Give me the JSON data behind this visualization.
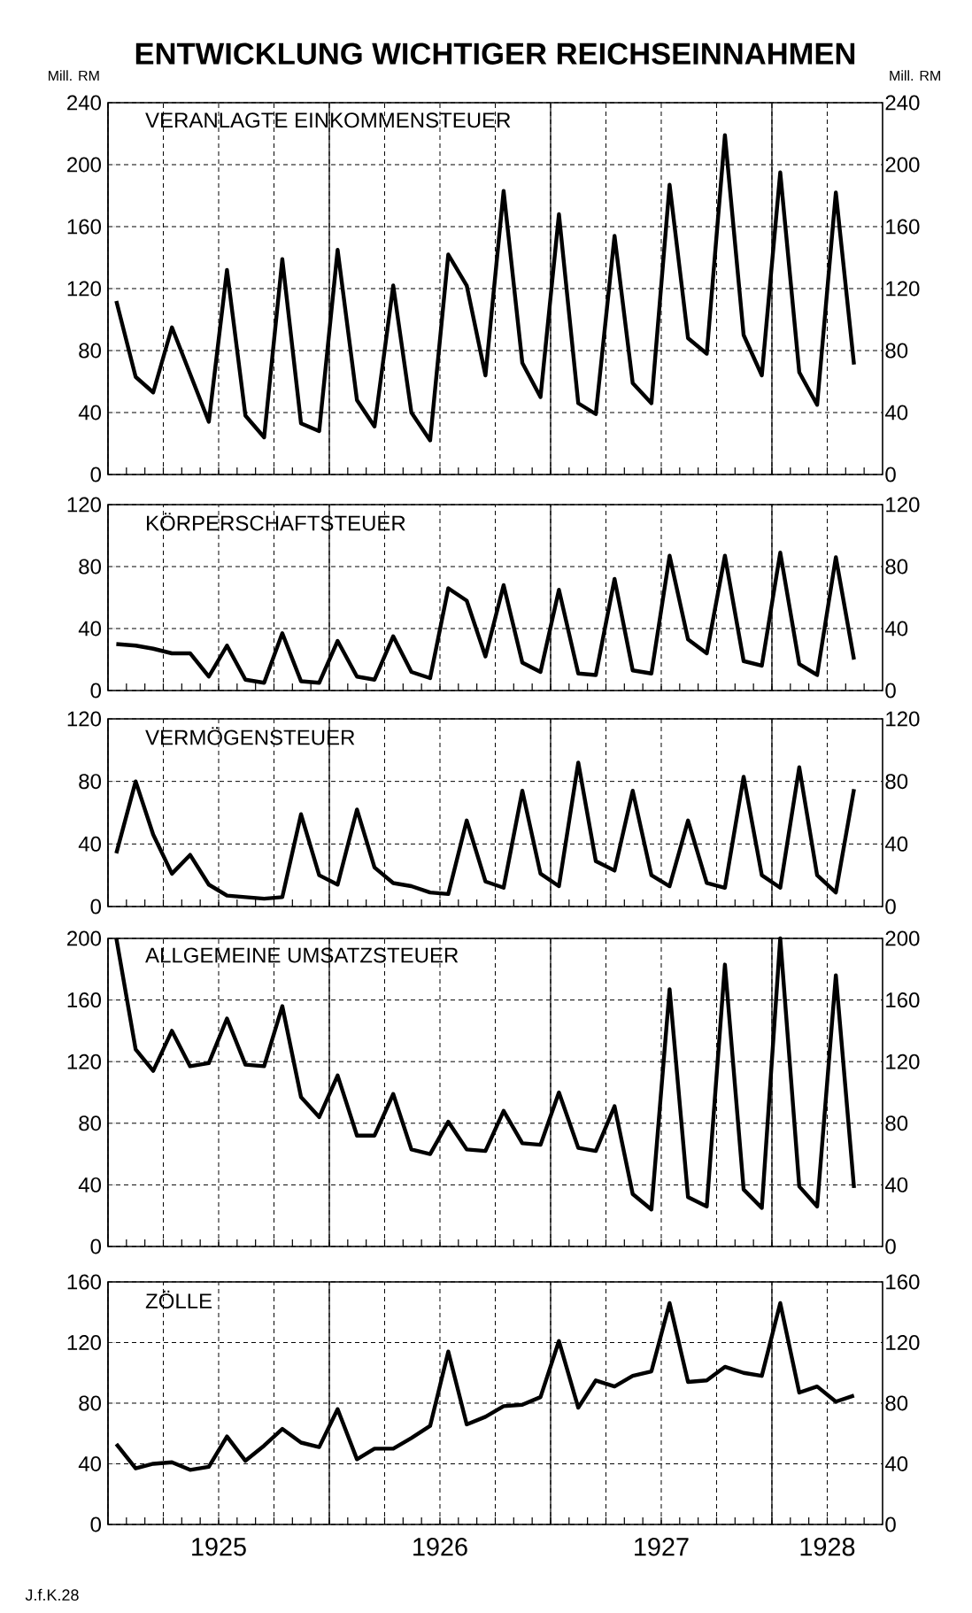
{
  "chart_data": [
    {
      "type": "line",
      "title": "ENTWICKLUNG WICHTIGER REICHSEINNAHMEN",
      "subtitle": "VERANLAGTE EINKOMMENSTEUER",
      "ylabel": "Mill. RM",
      "y2label": "Mill. RM",
      "x": [
        "1925-01-15",
        "1925-02-15",
        "1925-03-15",
        "1925-04-15",
        "1925-05-15",
        "1925-06-15",
        "1925-07-15",
        "1925-08-15",
        "1925-09-15",
        "1925-10-15",
        "1925-11-15",
        "1925-12-15",
        "1926-01-15",
        "1926-02-15",
        "1926-03-15",
        "1926-04-15",
        "1926-05-15",
        "1926-06-15",
        "1926-07-15",
        "1926-08-15",
        "1926-09-15",
        "1926-10-15",
        "1926-11-15",
        "1926-12-15",
        "1927-01-15",
        "1927-02-15",
        "1927-03-15",
        "1927-04-15",
        "1927-05-15",
        "1927-06-15",
        "1927-07-15",
        "1927-08-15",
        "1927-09-15",
        "1927-10-15",
        "1927-11-15",
        "1927-12-15",
        "1928-01-15",
        "1928-02-15",
        "1928-03-15",
        "1928-04-15",
        "1928-05-15"
      ],
      "series": [
        {
          "color": "#000000",
          "values": [
            112,
            63,
            53,
            95,
            65,
            34,
            132,
            38,
            24,
            139,
            33,
            28,
            145,
            48,
            31,
            122,
            40,
            22,
            142,
            122,
            64,
            183,
            72,
            50,
            168,
            46,
            39,
            154,
            59,
            46,
            187,
            88,
            78,
            219,
            90,
            64,
            195,
            66,
            45,
            182,
            71
          ]
        }
      ],
      "xlim": [
        "1925-01-01",
        "1928-07-01"
      ],
      "xticks": [
        {
          "value": "1925-01-01",
          "label": null
        },
        {
          "value": "1925-04-01",
          "label": null
        },
        {
          "value": "1925-07-01",
          "label": null
        },
        {
          "value": "1925-10-01",
          "label": null
        },
        {
          "value": "1926-01-01",
          "label": null
        },
        {
          "value": "1926-04-01",
          "label": null
        },
        {
          "value": "1926-07-01",
          "label": null
        },
        {
          "value": "1926-10-01",
          "label": null
        },
        {
          "value": "1927-01-01",
          "label": null
        },
        {
          "value": "1927-04-01",
          "label": null
        },
        {
          "value": "1927-07-01",
          "label": null
        },
        {
          "value": "1927-10-01",
          "label": null
        },
        {
          "value": "1928-01-01",
          "label": null
        },
        {
          "value": "1928-04-01",
          "label": null
        }
      ],
      "ylim": [
        0,
        240
      ],
      "yticks": [
        0,
        40,
        80,
        120,
        160,
        200,
        240
      ],
      "y2lim": [
        0,
        240
      ],
      "y2ticks": [
        0,
        40,
        80,
        120,
        160,
        200,
        240
      ],
      "grid": true,
      "tick_labels": "y"
    },
    {
      "type": "line",
      "title": "KÖRPERSCHAFTSTEUER",
      "x": [
        "1925-01-15",
        "1925-02-15",
        "1925-03-15",
        "1925-04-15",
        "1925-05-15",
        "1925-06-15",
        "1925-07-15",
        "1925-08-15",
        "1925-09-15",
        "1925-10-15",
        "1925-11-15",
        "1925-12-15",
        "1926-01-15",
        "1926-02-15",
        "1926-03-15",
        "1926-04-15",
        "1926-05-15",
        "1926-06-15",
        "1926-07-15",
        "1926-08-15",
        "1926-09-15",
        "1926-10-15",
        "1926-11-15",
        "1926-12-15",
        "1927-01-15",
        "1927-02-15",
        "1927-03-15",
        "1927-04-15",
        "1927-05-15",
        "1927-06-15",
        "1927-07-15",
        "1927-08-15",
        "1927-09-15",
        "1927-10-15",
        "1927-11-15",
        "1927-12-15",
        "1928-01-15",
        "1928-02-15",
        "1928-03-15",
        "1928-04-15",
        "1928-05-15"
      ],
      "series": [
        {
          "color": "#000000",
          "values": [
            30,
            29,
            27,
            24,
            24,
            9,
            29,
            7,
            5,
            37,
            6,
            5,
            32,
            9,
            7,
            35,
            12,
            8,
            66,
            58,
            22,
            68,
            18,
            12,
            65,
            11,
            10,
            72,
            13,
            11,
            87,
            33,
            24,
            87,
            19,
            16,
            89,
            17,
            10,
            86,
            20
          ]
        }
      ],
      "xlim": [
        "1925-01-01",
        "1928-07-01"
      ],
      "xticks": [
        {
          "value": "1925-01-01",
          "label": null
        },
        {
          "value": "1925-04-01",
          "label": null
        },
        {
          "value": "1925-07-01",
          "label": null
        },
        {
          "value": "1925-10-01",
          "label": null
        },
        {
          "value": "1926-01-01",
          "label": null
        },
        {
          "value": "1926-04-01",
          "label": null
        },
        {
          "value": "1926-07-01",
          "label": null
        },
        {
          "value": "1926-10-01",
          "label": null
        },
        {
          "value": "1927-01-01",
          "label": null
        },
        {
          "value": "1927-04-01",
          "label": null
        },
        {
          "value": "1927-07-01",
          "label": null
        },
        {
          "value": "1927-10-01",
          "label": null
        },
        {
          "value": "1928-01-01",
          "label": null
        },
        {
          "value": "1928-04-01",
          "label": null
        }
      ],
      "ylim": [
        0,
        120
      ],
      "yticks": [
        0,
        40,
        80,
        120
      ],
      "y2lim": [
        0,
        120
      ],
      "y2ticks": [
        0,
        40,
        80,
        120
      ],
      "grid": true,
      "tick_labels": "y"
    },
    {
      "type": "line",
      "title": "VERMÖGENSTEUER",
      "x": [
        "1925-01-15",
        "1925-02-15",
        "1925-03-15",
        "1925-04-15",
        "1925-05-15",
        "1925-06-15",
        "1925-07-15",
        "1925-08-15",
        "1925-09-15",
        "1925-10-15",
        "1925-11-15",
        "1925-12-15",
        "1926-01-15",
        "1926-02-15",
        "1926-03-15",
        "1926-04-15",
        "1926-05-15",
        "1926-06-15",
        "1926-07-15",
        "1926-08-15",
        "1926-09-15",
        "1926-10-15",
        "1926-11-15",
        "1926-12-15",
        "1927-01-15",
        "1927-02-15",
        "1927-03-15",
        "1927-04-15",
        "1927-05-15",
        "1927-06-15",
        "1927-07-15",
        "1927-08-15",
        "1927-09-15",
        "1927-10-15",
        "1927-11-15",
        "1927-12-15",
        "1928-01-15",
        "1928-02-15",
        "1928-03-15",
        "1928-04-15",
        "1928-05-15"
      ],
      "series": [
        {
          "color": "#000000",
          "values": [
            34,
            80,
            46,
            21,
            33,
            14,
            7,
            6,
            5,
            6,
            59,
            20,
            14,
            62,
            25,
            15,
            13,
            9,
            8,
            55,
            16,
            12,
            74,
            21,
            13,
            92,
            29,
            23,
            74,
            20,
            13,
            55,
            15,
            12,
            83,
            20,
            12,
            89,
            20,
            9,
            75
          ]
        }
      ],
      "xlim": [
        "1925-01-01",
        "1928-07-01"
      ],
      "xticks": [
        {
          "value": "1925-01-01",
          "label": null
        },
        {
          "value": "1925-04-01",
          "label": null
        },
        {
          "value": "1925-07-01",
          "label": null
        },
        {
          "value": "1925-10-01",
          "label": null
        },
        {
          "value": "1926-01-01",
          "label": null
        },
        {
          "value": "1926-04-01",
          "label": null
        },
        {
          "value": "1926-07-01",
          "label": null
        },
        {
          "value": "1926-10-01",
          "label": null
        },
        {
          "value": "1927-01-01",
          "label": null
        },
        {
          "value": "1927-04-01",
          "label": null
        },
        {
          "value": "1927-07-01",
          "label": null
        },
        {
          "value": "1927-10-01",
          "label": null
        },
        {
          "value": "1928-01-01",
          "label": null
        },
        {
          "value": "1928-04-01",
          "label": null
        }
      ],
      "ylim": [
        0,
        120
      ],
      "yticks": [
        0,
        40,
        80,
        120
      ],
      "y2lim": [
        0,
        120
      ],
      "y2ticks": [
        0,
        40,
        80,
        120
      ],
      "grid": true,
      "tick_labels": "y"
    },
    {
      "type": "line",
      "title": "ALLGEMEINE UMSATZSTEUER",
      "x": [
        "1925-01-15",
        "1925-02-15",
        "1925-03-15",
        "1925-04-15",
        "1925-05-15",
        "1925-06-15",
        "1925-07-15",
        "1925-08-15",
        "1925-09-15",
        "1925-10-15",
        "1925-11-15",
        "1925-12-15",
        "1926-01-15",
        "1926-02-15",
        "1926-03-15",
        "1926-04-15",
        "1926-05-15",
        "1926-06-15",
        "1926-07-15",
        "1926-08-15",
        "1926-09-15",
        "1926-10-15",
        "1926-11-15",
        "1926-12-15",
        "1927-01-15",
        "1927-02-15",
        "1927-03-15",
        "1927-04-15",
        "1927-05-15",
        "1927-06-15",
        "1927-07-15",
        "1927-08-15",
        "1927-09-15",
        "1927-10-15",
        "1927-11-15",
        "1927-12-15",
        "1928-01-15",
        "1928-02-15",
        "1928-03-15",
        "1928-04-15",
        "1928-05-15"
      ],
      "series": [
        {
          "color": "#000000",
          "values": [
            200,
            128,
            114,
            140,
            117,
            119,
            148,
            118,
            117,
            156,
            97,
            84,
            111,
            72,
            72,
            99,
            63,
            60,
            81,
            63,
            62,
            88,
            67,
            66,
            100,
            64,
            62,
            91,
            34,
            24,
            167,
            32,
            26,
            183,
            37,
            25,
            200,
            39,
            26,
            176,
            38
          ]
        }
      ],
      "xlim": [
        "1925-01-01",
        "1928-07-01"
      ],
      "xticks": [
        {
          "value": "1925-01-01",
          "label": null
        },
        {
          "value": "1925-04-01",
          "label": null
        },
        {
          "value": "1925-07-01",
          "label": null
        },
        {
          "value": "1925-10-01",
          "label": null
        },
        {
          "value": "1926-01-01",
          "label": null
        },
        {
          "value": "1926-04-01",
          "label": null
        },
        {
          "value": "1926-07-01",
          "label": null
        },
        {
          "value": "1926-10-01",
          "label": null
        },
        {
          "value": "1927-01-01",
          "label": null
        },
        {
          "value": "1927-04-01",
          "label": null
        },
        {
          "value": "1927-07-01",
          "label": null
        },
        {
          "value": "1927-10-01",
          "label": null
        },
        {
          "value": "1928-01-01",
          "label": null
        },
        {
          "value": "1928-04-01",
          "label": null
        }
      ],
      "ylim": [
        0,
        200
      ],
      "yticks": [
        0,
        40,
        80,
        120,
        160,
        200
      ],
      "y2lim": [
        0,
        200
      ],
      "y2ticks": [
        0,
        40,
        80,
        120,
        160,
        200
      ],
      "grid": true,
      "tick_labels": "y"
    },
    {
      "type": "line",
      "title": "ZÖLLE",
      "annotations": [
        "J.f.K.28"
      ],
      "x": [
        "1925-01-15",
        "1925-02-15",
        "1925-03-15",
        "1925-04-15",
        "1925-05-15",
        "1925-06-15",
        "1925-07-15",
        "1925-08-15",
        "1925-09-15",
        "1925-10-15",
        "1925-11-15",
        "1925-12-15",
        "1926-01-15",
        "1926-02-15",
        "1926-03-15",
        "1926-04-15",
        "1926-05-15",
        "1926-06-15",
        "1926-07-15",
        "1926-08-15",
        "1926-09-15",
        "1926-10-15",
        "1926-11-15",
        "1926-12-15",
        "1927-01-15",
        "1927-02-15",
        "1927-03-15",
        "1927-04-15",
        "1927-05-15",
        "1927-06-15",
        "1927-07-15",
        "1927-08-15",
        "1927-09-15",
        "1927-10-15",
        "1927-11-15",
        "1927-12-15",
        "1928-01-15",
        "1928-02-15",
        "1928-03-15",
        "1928-04-15",
        "1928-05-15"
      ],
      "series": [
        {
          "color": "#000000",
          "values": [
            53,
            37,
            40,
            41,
            36,
            38,
            58,
            42,
            52,
            63,
            54,
            51,
            76,
            43,
            50,
            50,
            57,
            65,
            114,
            66,
            71,
            78,
            79,
            84,
            121,
            77,
            95,
            91,
            98,
            101,
            146,
            94,
            95,
            104,
            100,
            98,
            146,
            87,
            91,
            81,
            85
          ]
        }
      ],
      "xlim": [
        "1925-01-01",
        "1928-07-01"
      ],
      "xticks": [
        {
          "value": "1925-01-01",
          "label": null
        },
        {
          "value": "1925-04-01",
          "label": null
        },
        {
          "value": "1925-07-01",
          "label": "1925"
        },
        {
          "value": "1925-10-01",
          "label": null
        },
        {
          "value": "1926-01-01",
          "label": null
        },
        {
          "value": "1926-04-01",
          "label": null
        },
        {
          "value": "1926-07-01",
          "label": "1926"
        },
        {
          "value": "1926-10-01",
          "label": null
        },
        {
          "value": "1927-01-01",
          "label": null
        },
        {
          "value": "1927-04-01",
          "label": null
        },
        {
          "value": "1927-07-01",
          "label": "1927"
        },
        {
          "value": "1927-10-01",
          "label": null
        },
        {
          "value": "1928-01-01",
          "label": null
        },
        {
          "value": "1928-04-01",
          "label": "1928"
        }
      ],
      "ylim": [
        0,
        160
      ],
      "yticks": [
        0,
        40,
        80,
        120,
        160
      ],
      "y2lim": [
        0,
        160
      ],
      "y2ticks": [
        0,
        40,
        80,
        120,
        160
      ],
      "grid": true
    }
  ]
}
